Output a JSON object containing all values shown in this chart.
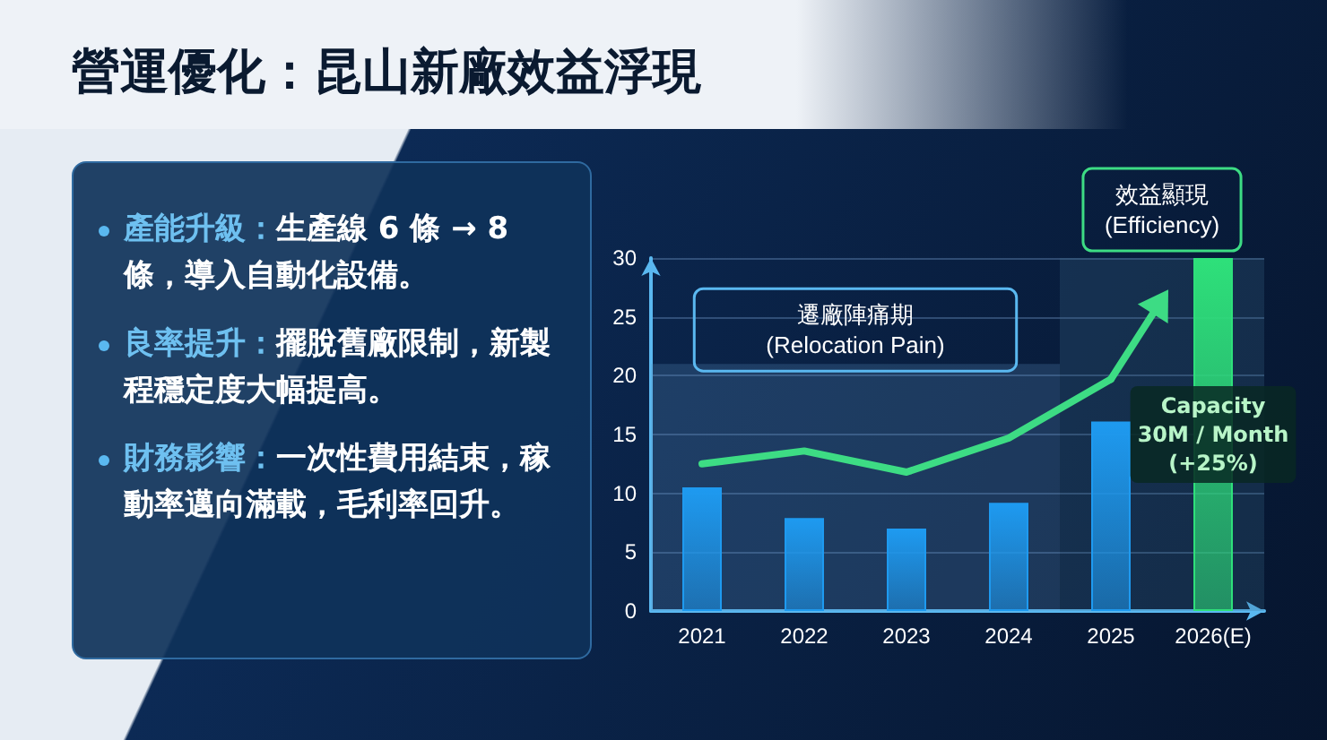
{
  "chart_data": [
    {
      "type": "other",
      "title": "營運優化：昆山新廠效益浮現",
      "annotations": [
        "產能升級：生產線 6 條 → 8 條，導入自動化設備。",
        "良率提升：擺脫舊廠限制，新製程穩定度大幅提高。",
        "財務影響：一次性費用結束，稼動率邁向滿載，毛利率回升。"
      ]
    },
    {
      "type": "bar",
      "categories": [
        "2021",
        "2022",
        "2023",
        "2024",
        "2025",
        "2026(E)"
      ],
      "ylim": [
        0,
        30
      ],
      "yticks": [
        0,
        5,
        10,
        15,
        20,
        25,
        30
      ],
      "grid": "y",
      "series": [
        {
          "type": "bar",
          "colors": [
            "#1e9af0",
            "#1e9af0",
            "#1e9af0",
            "#1e9af0",
            "#1e9af0",
            "#2ee07a"
          ],
          "values": [
            10.5,
            7.9,
            7.0,
            9.2,
            16.1,
            30
          ]
        },
        {
          "type": "line",
          "color": "#3ddc84",
          "values": [
            12.5,
            13.6,
            11.8,
            14.7,
            19.7,
            null
          ]
        }
      ],
      "bands": [
        {
          "axis": "x",
          "from": "2021",
          "to": "2024",
          "label": "遷廠陣痛期\n(Relocation Pain)",
          "color": "#5a8fc0"
        },
        {
          "axis": "x",
          "from": "2025",
          "to": "2026(E)",
          "label": "效益顯現\n(Efficiency)",
          "color": "#3a6a8a"
        }
      ],
      "annotations": [
        "Capacity\n30M / Month\n(+25%)"
      ]
    }
  ]
}
